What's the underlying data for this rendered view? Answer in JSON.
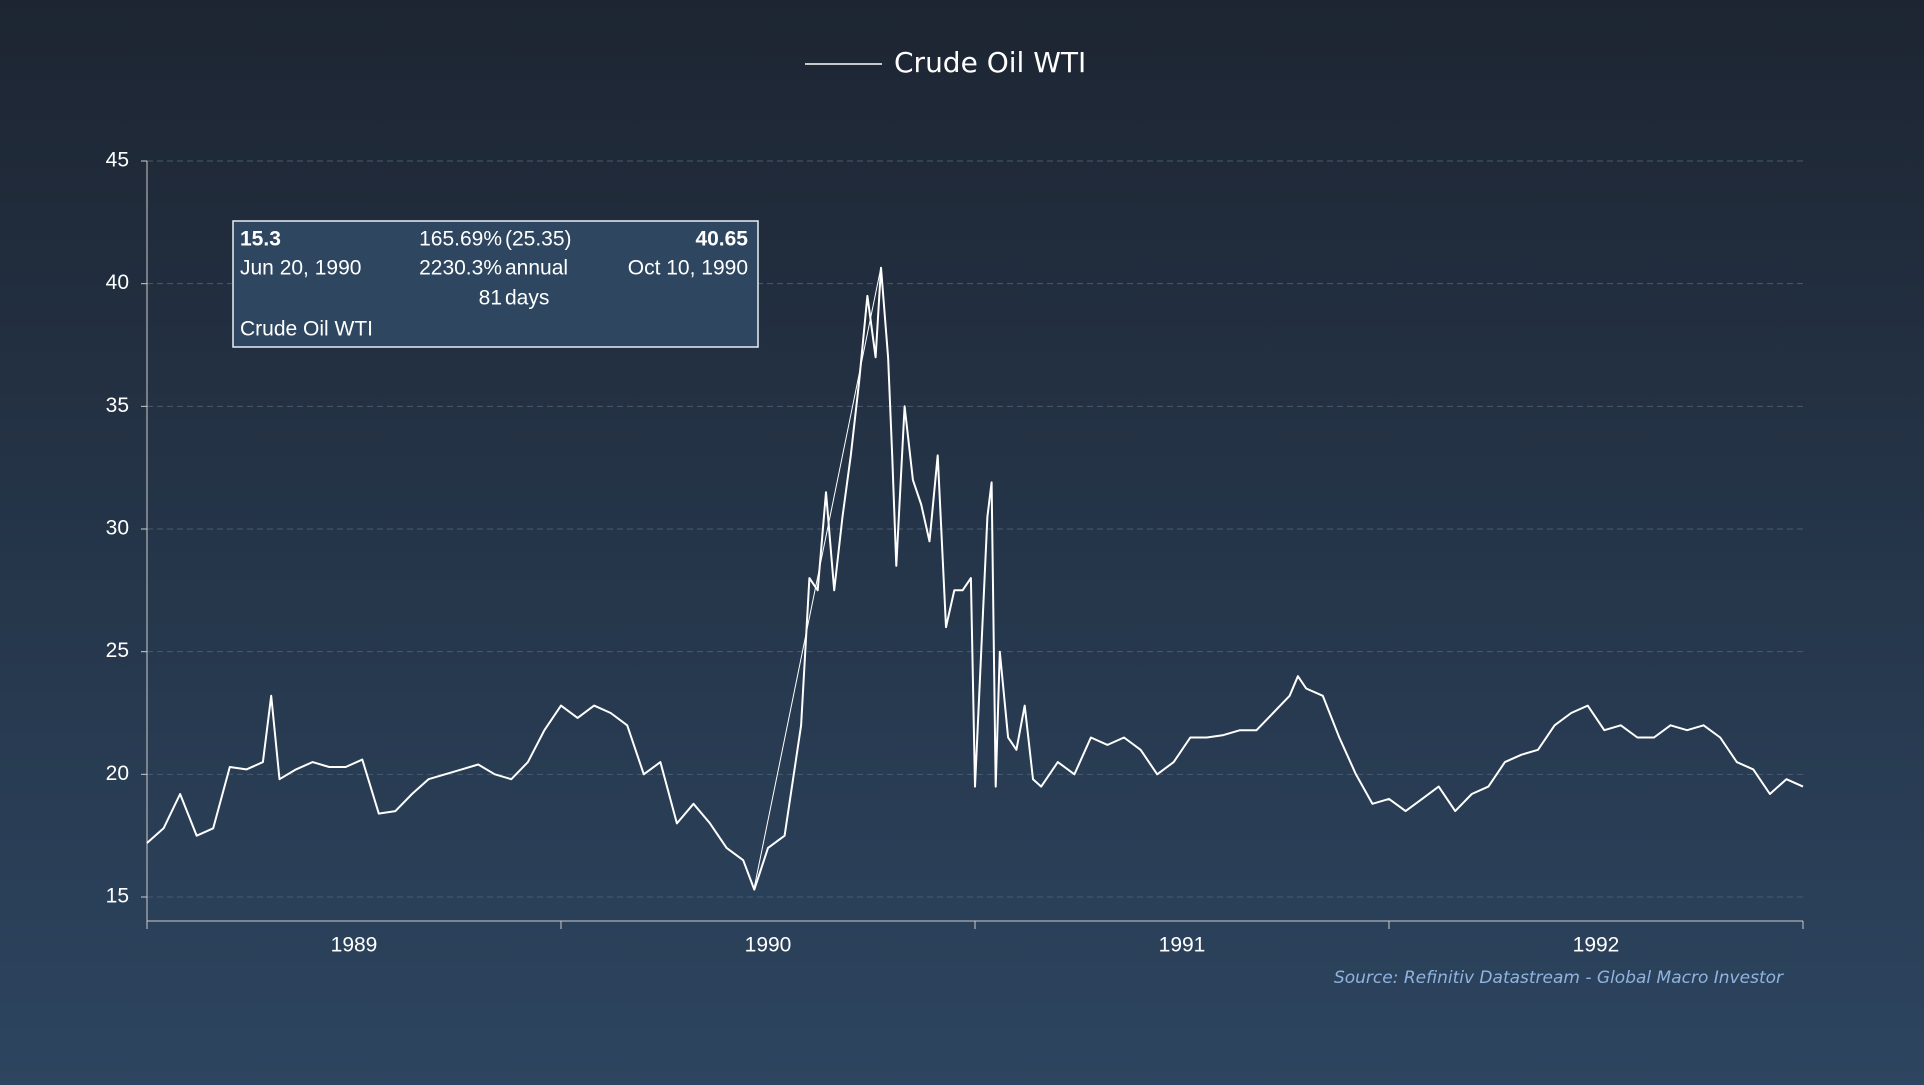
{
  "chart_data": {
    "type": "line",
    "legend_title": "Crude Oil WTI",
    "source": "Source: Refinitiv Datastream - Global Macro Investor",
    "series": [
      {
        "name": "Crude Oil WTI",
        "color": "#ffffff",
        "x": [
          1989.0,
          1989.04,
          1989.08,
          1989.12,
          1989.16,
          1989.2,
          1989.24,
          1989.28,
          1989.3,
          1989.32,
          1989.36,
          1989.4,
          1989.44,
          1989.48,
          1989.52,
          1989.56,
          1989.6,
          1989.64,
          1989.68,
          1989.72,
          1989.76,
          1989.8,
          1989.84,
          1989.88,
          1989.92,
          1989.96,
          1990.0,
          1990.04,
          1990.08,
          1990.12,
          1990.16,
          1990.2,
          1990.24,
          1990.28,
          1990.32,
          1990.36,
          1990.4,
          1990.44,
          1990.467,
          1990.5,
          1990.54,
          1990.58,
          1990.6,
          1990.62,
          1990.64,
          1990.66,
          1990.68,
          1990.7,
          1990.72,
          1990.74,
          1990.76,
          1990.773,
          1990.79,
          1990.8,
          1990.81,
          1990.83,
          1990.85,
          1990.87,
          1990.89,
          1990.91,
          1990.93,
          1990.95,
          1990.97,
          1990.99,
          1991.0,
          1991.03,
          1991.04,
          1991.05,
          1991.06,
          1991.08,
          1991.1,
          1991.12,
          1991.14,
          1991.16,
          1991.2,
          1991.24,
          1991.28,
          1991.32,
          1991.36,
          1991.4,
          1991.44,
          1991.48,
          1991.52,
          1991.56,
          1991.6,
          1991.64,
          1991.68,
          1991.72,
          1991.76,
          1991.78,
          1991.8,
          1991.84,
          1991.88,
          1991.92,
          1991.96,
          1992.0,
          1992.04,
          1992.08,
          1992.12,
          1992.16,
          1992.2,
          1992.24,
          1992.28,
          1992.32,
          1992.36,
          1992.4,
          1992.44,
          1992.48,
          1992.52,
          1992.56,
          1992.6,
          1992.64,
          1992.68,
          1992.72,
          1992.76,
          1992.8,
          1992.84,
          1992.88,
          1992.92,
          1992.96,
          1993.0
        ],
        "values": [
          17.2,
          17.8,
          19.2,
          17.5,
          17.8,
          20.3,
          20.2,
          20.5,
          23.2,
          19.8,
          20.2,
          20.5,
          20.3,
          20.3,
          20.6,
          18.4,
          18.5,
          19.2,
          19.8,
          20.0,
          20.2,
          20.4,
          20.0,
          19.8,
          20.5,
          21.8,
          22.8,
          22.3,
          22.8,
          22.5,
          22.0,
          20.0,
          20.5,
          18.0,
          18.8,
          18.0,
          17.0,
          16.5,
          15.3,
          17.0,
          17.5,
          22.0,
          28.0,
          27.5,
          31.5,
          27.5,
          30.5,
          33.0,
          36.0,
          39.5,
          37.0,
          40.65,
          37.0,
          33.0,
          28.5,
          35.0,
          32.0,
          31.0,
          29.5,
          33.0,
          26.0,
          27.5,
          27.5,
          28.0,
          19.5,
          30.5,
          31.9,
          19.5,
          25.0,
          21.5,
          21.0,
          22.8,
          19.8,
          19.5,
          20.5,
          20.0,
          21.5,
          21.2,
          21.5,
          21.0,
          20.0,
          20.5,
          21.5,
          21.5,
          21.6,
          21.8,
          21.8,
          22.5,
          23.2,
          24.0,
          23.5,
          23.2,
          21.5,
          20.0,
          18.8,
          19.0,
          18.5,
          19.0,
          19.5,
          18.5,
          19.2,
          19.5,
          20.5,
          20.8,
          21.0,
          22.0,
          22.5,
          22.8,
          21.8,
          22.0,
          21.5,
          21.5,
          22.0,
          21.8,
          22.0,
          21.5,
          20.5,
          20.2,
          19.2,
          19.8,
          19.5
        ]
      }
    ],
    "xlim": [
      1989,
      1993
    ],
    "xticks": [
      {
        "value": 1989.5,
        "label": "1989"
      },
      {
        "value": 1990.5,
        "label": "1990"
      },
      {
        "value": 1991.5,
        "label": "1991"
      },
      {
        "value": 1992.5,
        "label": "1992"
      }
    ],
    "xtick_marks": [
      1989,
      1990,
      1991,
      1992,
      1993
    ],
    "ylim": [
      15,
      45
    ],
    "yticks": [
      15,
      20,
      25,
      30,
      35,
      40,
      45
    ],
    "grid": true,
    "annotation": {
      "start_value": "15.3",
      "start_date": "Jun 20, 1990",
      "change_pct": "165.69%",
      "change_abs": "(25.35)",
      "annual_pct": "2230.3%",
      "annual_label": "annual",
      "days": "81",
      "days_label": "days",
      "end_value": "40.65",
      "end_date": "Oct 10, 1990",
      "series_name": "Crude Oil WTI"
    }
  }
}
